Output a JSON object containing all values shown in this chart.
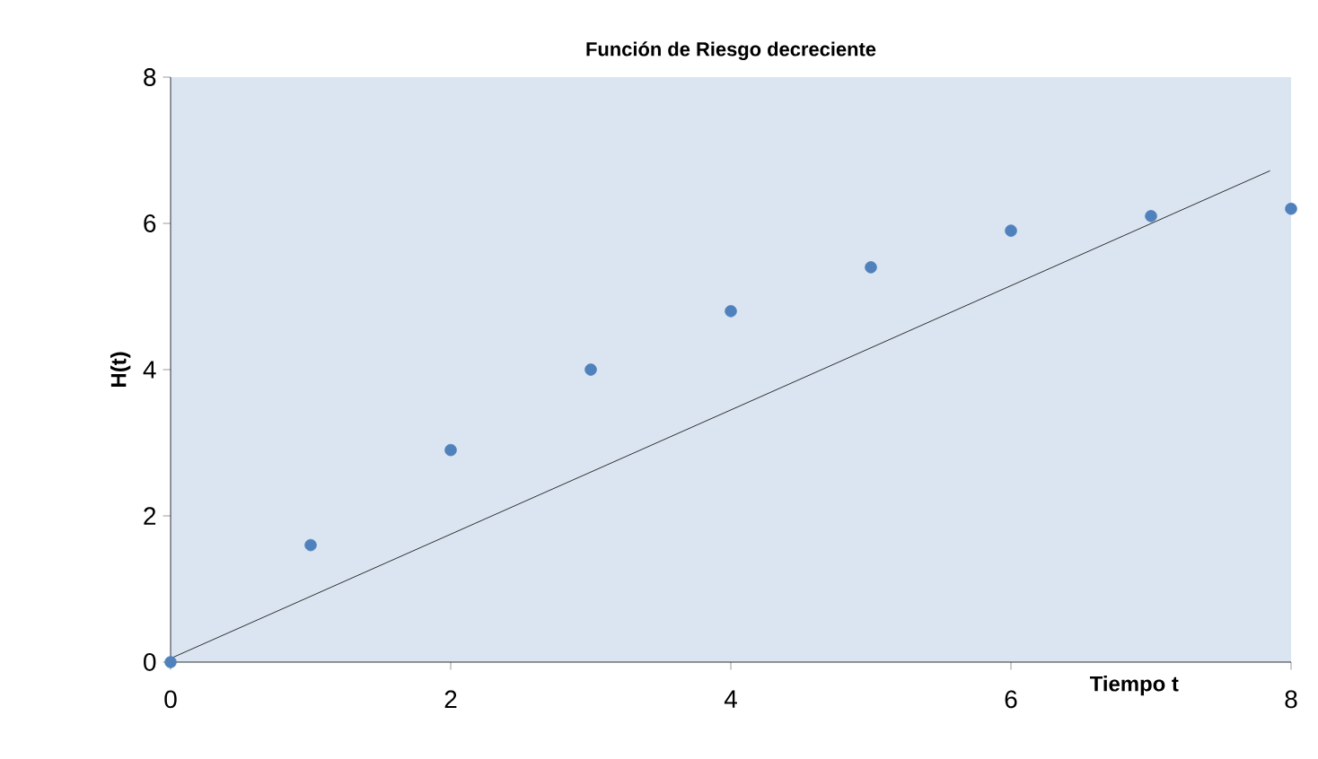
{
  "chart_data": {
    "type": "scatter",
    "title": "Función de Riesgo decreciente",
    "xlabel": "Tiempo t",
    "ylabel": "H(t)",
    "xlim": [
      0,
      8
    ],
    "ylim": [
      0,
      8
    ],
    "xticks": [
      0,
      2,
      4,
      6,
      8
    ],
    "yticks": [
      0,
      2,
      4,
      6,
      8
    ],
    "grid": false,
    "series": [
      {
        "color": "#4f81bd",
        "marker": "circle",
        "x": [
          0,
          1,
          2,
          3,
          4,
          5,
          6,
          7,
          8
        ],
        "values": [
          0,
          1.6,
          2.9,
          4.0,
          4.8,
          5.4,
          5.9,
          6.1,
          6.2
        ]
      },
      {
        "type": "line",
        "color": "#000000",
        "marker": "none",
        "x": [
          0,
          7.85
        ],
        "values": [
          0.05,
          6.72
        ]
      }
    ]
  }
}
